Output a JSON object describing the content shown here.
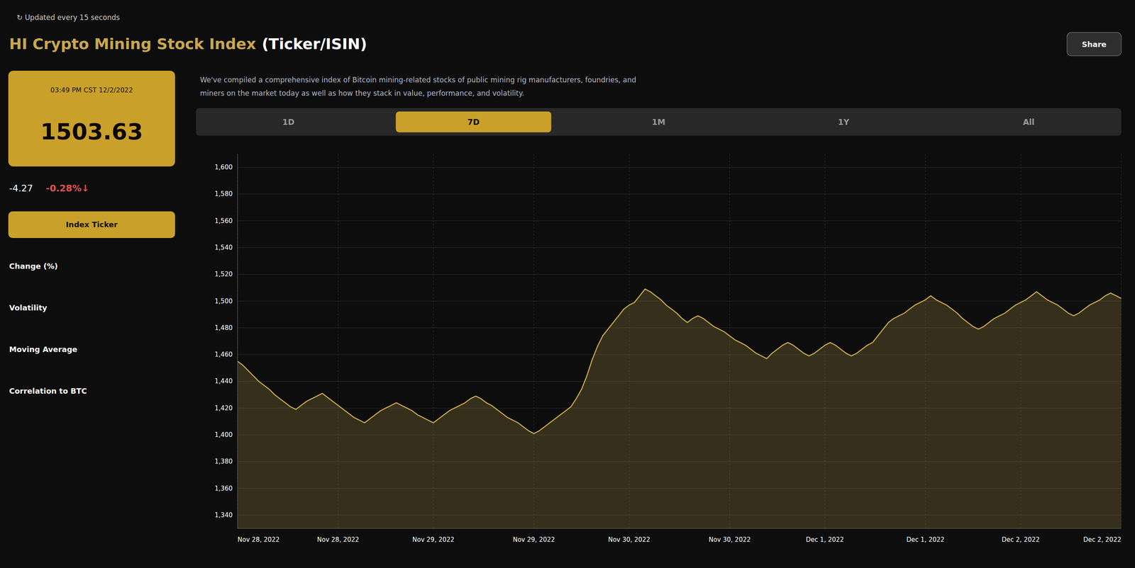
{
  "chart_data": {
    "type": "area",
    "title": "HI Crypto Mining Stock Index",
    "subtitle": "(Ticker/ISIN)",
    "color": "#c9a84c",
    "grid": true,
    "annotations": [
      "↻  Updated every 15 seconds",
      "03:49 PM CST 12/2/2022",
      "1503.63",
      "-4.27",
      "-0.28%↓",
      "We've compiled a comprehensive index of Bitcoin mining-related stocks of public mining rig manufacturers, foundries, and",
      "miners on the market today as well as how they stack in value, performance, and volatility.",
      "Index Ticker",
      "Change (%)",
      "Volatility",
      "Moving Average",
      "Correlation to BTC",
      "1D",
      "7D",
      "1M",
      "1Y",
      "All",
      "Share"
    ],
    "ylim": [
      1330,
      1610
    ],
    "yticks": [
      {
        "value": 1340,
        "label": "1,340"
      },
      {
        "value": 1360,
        "label": "1,360"
      },
      {
        "value": 1380,
        "label": "1,380"
      },
      {
        "value": 1400,
        "label": "1,400"
      },
      {
        "value": 1420,
        "label": "1,420"
      },
      {
        "value": 1440,
        "label": "1,440"
      },
      {
        "value": 1460,
        "label": "1,460"
      },
      {
        "value": 1480,
        "label": "1,480"
      },
      {
        "value": 1500,
        "label": "1,500"
      },
      {
        "value": 1520,
        "label": "1,520"
      },
      {
        "value": 1540,
        "label": "1,540"
      },
      {
        "value": 1560,
        "label": "1,560"
      },
      {
        "value": 1580,
        "label": "1,580"
      },
      {
        "value": 1600,
        "label": "1,600"
      }
    ],
    "categories": [
      "Nov 28, 2022",
      null,
      null,
      null,
      null,
      null,
      null,
      null,
      null,
      null,
      null,
      null,
      null,
      null,
      null,
      null,
      null,
      null,
      null,
      "Nov 28, 2022",
      null,
      null,
      null,
      null,
      null,
      null,
      null,
      null,
      null,
      null,
      null,
      null,
      null,
      null,
      null,
      null,
      null,
      "Nov 29, 2022",
      null,
      null,
      null,
      null,
      null,
      null,
      null,
      null,
      null,
      null,
      null,
      null,
      null,
      null,
      null,
      null,
      null,
      null,
      "Nov 29, 2022",
      null,
      null,
      null,
      null,
      null,
      null,
      null,
      null,
      null,
      null,
      null,
      null,
      null,
      null,
      null,
      null,
      null,
      "Nov 30, 2022",
      null,
      null,
      null,
      null,
      null,
      null,
      null,
      null,
      null,
      null,
      null,
      null,
      null,
      null,
      null,
      null,
      null,
      null,
      "Nov 30, 2022",
      null,
      null,
      null,
      null,
      null,
      null,
      null,
      null,
      null,
      null,
      null,
      null,
      null,
      null,
      null,
      null,
      null,
      "Dec 1, 2022",
      null,
      null,
      null,
      null,
      null,
      null,
      null,
      null,
      null,
      null,
      null,
      null,
      null,
      null,
      null,
      null,
      null,
      null,
      "Dec 1, 2022",
      null,
      null,
      null,
      null,
      null,
      null,
      null,
      null,
      null,
      null,
      null,
      null,
      null,
      null,
      null,
      null,
      null,
      "Dec 2, 2022",
      null,
      null,
      null,
      null,
      null,
      null,
      null,
      null,
      null,
      null,
      null,
      null,
      null,
      null,
      null,
      null,
      null,
      null,
      "Dec 2, 2022"
    ],
    "values": [
      1455,
      1452,
      1448,
      1444,
      1440,
      1437,
      1434,
      1430,
      1427,
      1424,
      1421,
      1419,
      1422,
      1425,
      1427,
      1429,
      1431,
      1428,
      1425,
      1422,
      1419,
      1416,
      1413,
      1411,
      1409,
      1412,
      1415,
      1418,
      1420,
      1422,
      1424,
      1422,
      1420,
      1418,
      1415,
      1413,
      1411,
      1409,
      1412,
      1415,
      1418,
      1420,
      1422,
      1424,
      1427,
      1429,
      1427,
      1424,
      1422,
      1419,
      1416,
      1413,
      1411,
      1409,
      1406,
      1403,
      1401,
      1403,
      1406,
      1409,
      1412,
      1415,
      1418,
      1421,
      1427,
      1434,
      1444,
      1456,
      1466,
      1474,
      1479,
      1484,
      1489,
      1494,
      1497,
      1499,
      1504,
      1509,
      1507,
      1504,
      1501,
      1497,
      1494,
      1491,
      1487,
      1484,
      1487,
      1489,
      1487,
      1484,
      1481,
      1479,
      1477,
      1474,
      1471,
      1469,
      1467,
      1464,
      1461,
      1459,
      1457,
      1461,
      1464,
      1467,
      1469,
      1467,
      1464,
      1461,
      1459,
      1461,
      1464,
      1467,
      1469,
      1467,
      1464,
      1461,
      1459,
      1461,
      1464,
      1467,
      1469,
      1474,
      1479,
      1484,
      1487,
      1489,
      1491,
      1494,
      1497,
      1499,
      1501,
      1504,
      1501,
      1499,
      1497,
      1494,
      1491,
      1487,
      1484,
      1481,
      1479,
      1481,
      1484,
      1487,
      1489,
      1491,
      1494,
      1497,
      1499,
      1501,
      1504,
      1507,
      1504,
      1501,
      1499,
      1497,
      1494,
      1491,
      1489,
      1491,
      1494,
      1497,
      1499,
      1501,
      1504,
      1506,
      1504,
      1502
    ]
  }
}
